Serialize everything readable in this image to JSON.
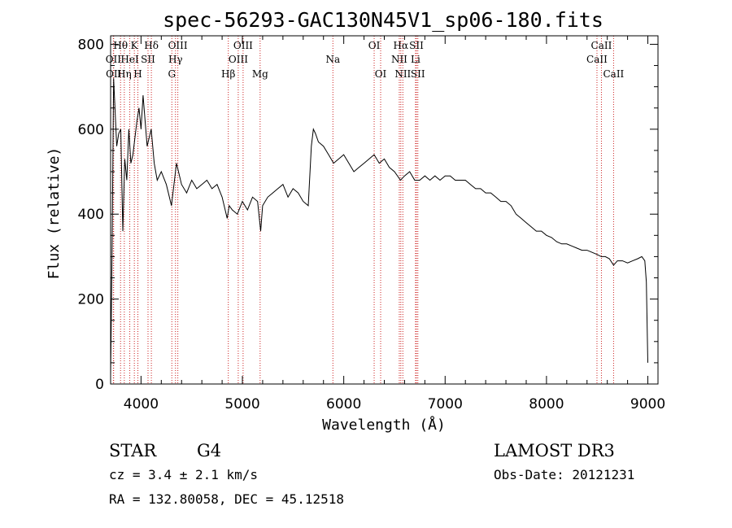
{
  "chart_data": {
    "type": "line",
    "title": "spec-56293-GAC130N45V1_sp06-180.fits",
    "xlabel": "Wavelength (Å)",
    "ylabel": "Flux (relative)",
    "xlim": [
      3700,
      9100
    ],
    "ylim": [
      0,
      820
    ],
    "x_ticks": [
      4000,
      5000,
      6000,
      7000,
      8000,
      9000
    ],
    "y_ticks": [
      0,
      200,
      400,
      600,
      800
    ],
    "grid": false,
    "series": [
      {
        "x": [
          3700,
          3715,
          3730,
          3745,
          3760,
          3780,
          3800,
          3820,
          3840,
          3860,
          3880,
          3900,
          3920,
          3940,
          3960,
          3980,
          4000,
          4020,
          4040,
          4060,
          4080,
          4100,
          4130,
          4160,
          4200,
          4250,
          4300,
          4350,
          4400,
          4450,
          4500,
          4550,
          4600,
          4650,
          4700,
          4750,
          4800,
          4850,
          4870,
          4900,
          4950,
          5000,
          5050,
          5100,
          5150,
          5180,
          5200,
          5250,
          5300,
          5350,
          5400,
          5450,
          5500,
          5550,
          5600,
          5650,
          5680,
          5700,
          5720,
          5750,
          5800,
          5850,
          5900,
          5950,
          6000,
          6050,
          6100,
          6150,
          6200,
          6250,
          6300,
          6350,
          6400,
          6450,
          6500,
          6560,
          6600,
          6650,
          6700,
          6750,
          6800,
          6850,
          6900,
          6950,
          7000,
          7050,
          7100,
          7150,
          7200,
          7250,
          7300,
          7350,
          7400,
          7450,
          7500,
          7550,
          7600,
          7650,
          7700,
          7750,
          7800,
          7850,
          7900,
          7950,
          8000,
          8050,
          8100,
          8150,
          8200,
          8250,
          8300,
          8350,
          8400,
          8450,
          8500,
          8540,
          8580,
          8620,
          8662,
          8700,
          8750,
          8800,
          8850,
          8900,
          8940,
          8970,
          8985,
          9000
        ],
        "y": [
          20,
          330,
          720,
          640,
          560,
          590,
          600,
          360,
          530,
          480,
          600,
          520,
          540,
          580,
          620,
          650,
          600,
          680,
          620,
          560,
          580,
          600,
          520,
          480,
          500,
          470,
          420,
          520,
          470,
          450,
          480,
          460,
          470,
          480,
          460,
          470,
          440,
          390,
          420,
          410,
          400,
          430,
          410,
          440,
          430,
          360,
          420,
          440,
          450,
          460,
          470,
          440,
          460,
          450,
          430,
          420,
          560,
          600,
          590,
          570,
          560,
          540,
          520,
          530,
          540,
          520,
          500,
          510,
          520,
          530,
          540,
          520,
          530,
          510,
          500,
          480,
          490,
          500,
          480,
          480,
          490,
          480,
          490,
          480,
          490,
          490,
          480,
          480,
          480,
          470,
          460,
          460,
          450,
          450,
          440,
          430,
          430,
          420,
          400,
          390,
          380,
          370,
          360,
          360,
          350,
          345,
          335,
          330,
          330,
          325,
          320,
          315,
          315,
          310,
          305,
          300,
          300,
          295,
          280,
          290,
          290,
          285,
          290,
          295,
          300,
          290,
          240,
          50
        ]
      }
    ],
    "spectral_lines": [
      {
        "label": "Hθ",
        "x": 3798,
        "row": 0
      },
      {
        "label": "K",
        "x": 3934,
        "row": 0
      },
      {
        "label": "Hδ",
        "x": 4102,
        "row": 0
      },
      {
        "label": "OIII",
        "x": 4363,
        "row": 0
      },
      {
        "label": "OIII",
        "x": 5007,
        "row": 0
      },
      {
        "label": "OI",
        "x": 6300,
        "row": 0
      },
      {
        "label": "Hα",
        "x": 6563,
        "row": 0
      },
      {
        "label": "SII",
        "x": 6717,
        "row": 0
      },
      {
        "label": "CaII",
        "x": 8542,
        "row": 0
      },
      {
        "label": "OII",
        "x": 3727,
        "row": 1
      },
      {
        "label": "HeI",
        "x": 3889,
        "row": 1
      },
      {
        "label": "SII",
        "x": 4069,
        "row": 1
      },
      {
        "label": "Hγ",
        "x": 4340,
        "row": 1
      },
      {
        "label": "OIII",
        "x": 4959,
        "row": 1
      },
      {
        "label": "Na",
        "x": 5893,
        "row": 1
      },
      {
        "label": "NII",
        "x": 6548,
        "row": 1
      },
      {
        "label": "Li",
        "x": 6708,
        "row": 1
      },
      {
        "label": "CaII",
        "x": 8498,
        "row": 1
      },
      {
        "label": "OII",
        "x": 3730,
        "row": 2
      },
      {
        "label": "Hη",
        "x": 3835,
        "row": 2
      },
      {
        "label": "H",
        "x": 3969,
        "row": 2
      },
      {
        "label": "G",
        "x": 4304,
        "row": 2
      },
      {
        "label": "Hβ",
        "x": 4861,
        "row": 2
      },
      {
        "label": "Mg",
        "x": 5175,
        "row": 2
      },
      {
        "label": "OI",
        "x": 6364,
        "row": 2
      },
      {
        "label": "NII",
        "x": 6583,
        "row": 2
      },
      {
        "label": "SII",
        "x": 6731,
        "row": 2
      },
      {
        "label": "CaII",
        "x": 8662,
        "row": 2
      }
    ]
  },
  "info": {
    "class": "STAR",
    "subclass": "G4",
    "survey": "LAMOST DR3",
    "cz": "cz = 3.4 ± 2.1 km/s",
    "obs_date": "Obs-Date: 20121231",
    "radec": "RA = 132.80058, DEC =  45.12518"
  }
}
